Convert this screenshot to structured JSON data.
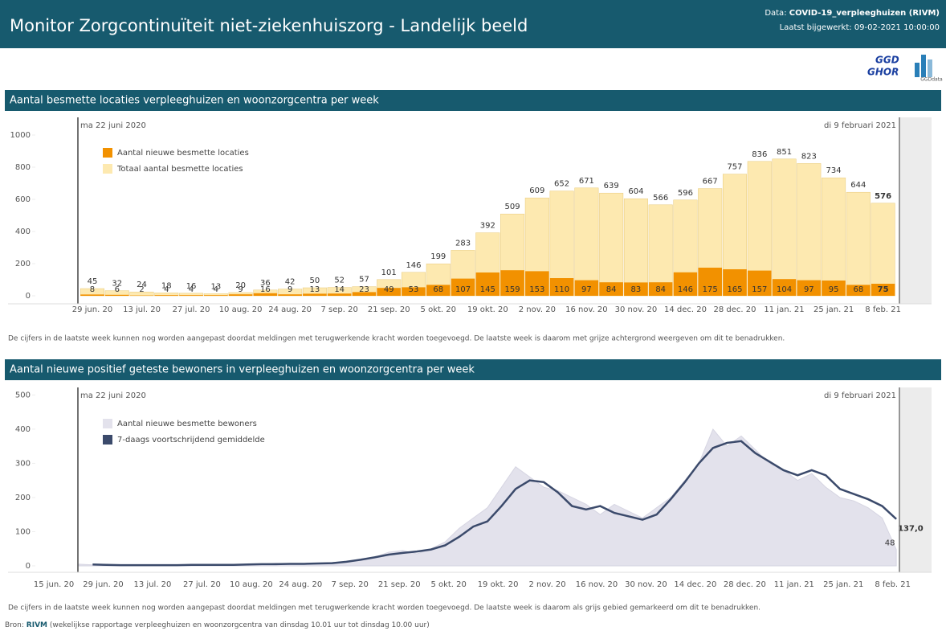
{
  "header": {
    "title": "Monitor Zorgcontinuïteit niet-ziekenhuiszorg - Landelijk beeld",
    "data_prefix": "Data:",
    "data_source": "COVID-19_verpleeghuizen (RIVM)",
    "updated": "Laatst bijgewerkt: 09-02-2021 10:00:00",
    "logo1_top": "GGD",
    "logo1_bottom": "GHOR",
    "logo2": "GGDdata"
  },
  "sections": [
    {
      "title": "Aantal besmette locaties verpleeghuizen en woonzorgcentra per week",
      "note": "De cijfers in de laatste week kunnen nog worden aangepast doordat meldingen met terugwerkende kracht worden toegevoegd. De laatste week is daarom met grijze achtergrond weergeven om dit te benadrukken."
    },
    {
      "title": "Aantal nieuwe positief geteste bewoners in verpleeghuizen en woonzorgcentra per week",
      "note": "De cijfers in de laatste week kunnen nog worden aangepast doordat meldingen met terugwerkende kracht worden toegevoegd. De laatste week is daarom als grijs gebied gemarkeerd om dit te benadrukken."
    }
  ],
  "source": {
    "prefix": "Bron:",
    "name": "RIVM",
    "detail": "(wekelijkse rapportage verpleeghuizen en woonzorgcentra van dinsdag 10.01 uur tot dinsdag 10.00 uur)"
  },
  "chart_data": [
    {
      "type": "bar",
      "annotations": [
        "ma 22 juni 2020",
        "di 9 februari 2021"
      ],
      "categories": [
        "29 jun. 20",
        null,
        "13 jul. 20",
        null,
        "27 jul. 20",
        null,
        "10 aug. 20",
        null,
        "24 aug. 20",
        null,
        "7 sep. 20",
        null,
        "21 sep. 20",
        null,
        "5 okt. 20",
        null,
        "19 okt. 20",
        null,
        "2 nov. 20",
        null,
        "16 nov. 20",
        null,
        "30 nov. 20",
        null,
        "14 dec. 20",
        null,
        "28 dec. 20",
        null,
        "11 jan. 21",
        null,
        "25 jan. 21",
        null,
        "8 feb. 21"
      ],
      "series": [
        {
          "name": "Aantal nieuwe besmette locaties",
          "color": "#f29100",
          "values": [
            8,
            6,
            2,
            4,
            4,
            4,
            9,
            16,
            9,
            13,
            14,
            23,
            49,
            53,
            68,
            107,
            145,
            159,
            153,
            110,
            97,
            84,
            83,
            84,
            146,
            175,
            165,
            157,
            104,
            97,
            95,
            68,
            75
          ]
        },
        {
          "name": "Totaal aantal besmette locaties",
          "color": "#fde9b0",
          "values": [
            45,
            32,
            24,
            18,
            16,
            13,
            20,
            36,
            42,
            50,
            52,
            57,
            101,
            146,
            199,
            283,
            392,
            509,
            609,
            652,
            671,
            639,
            604,
            566,
            596,
            667,
            757,
            836,
            851,
            823,
            734,
            644,
            576
          ]
        }
      ],
      "ylim": [
        0,
        1100
      ],
      "yticks": [
        0,
        200,
        400,
        600,
        800,
        1000
      ],
      "grid": false
    },
    {
      "type": "area",
      "annotations": [
        "ma 22 juni 2020",
        "di 9 februari 2021"
      ],
      "x": [
        "2020-06-22",
        "2020-06-26",
        "2020-06-30",
        "2020-07-04",
        "2020-07-08",
        "2020-07-12",
        "2020-07-16",
        "2020-07-20",
        "2020-07-24",
        "2020-07-28",
        "2020-08-01",
        "2020-08-05",
        "2020-08-09",
        "2020-08-13",
        "2020-08-17",
        "2020-08-21",
        "2020-08-25",
        "2020-08-29",
        "2020-09-02",
        "2020-09-06",
        "2020-09-10",
        "2020-09-14",
        "2020-09-18",
        "2020-09-22",
        "2020-09-26",
        "2020-09-30",
        "2020-10-04",
        "2020-10-08",
        "2020-10-12",
        "2020-10-16",
        "2020-10-20",
        "2020-10-24",
        "2020-10-28",
        "2020-11-01",
        "2020-11-05",
        "2020-11-09",
        "2020-11-13",
        "2020-11-17",
        "2020-11-21",
        "2020-11-25",
        "2020-11-29",
        "2020-12-03",
        "2020-12-07",
        "2020-12-11",
        "2020-12-15",
        "2020-12-19",
        "2020-12-23",
        "2020-12-27",
        "2020-12-31",
        "2021-01-04",
        "2021-01-08",
        "2021-01-12",
        "2021-01-16",
        "2021-01-20",
        "2021-01-24",
        "2021-01-28",
        "2021-02-01",
        "2021-02-05",
        "2021-02-09"
      ],
      "series": [
        {
          "name": "Aantal nieuwe besmette bewoners",
          "kind": "area",
          "color": "#e3e2ec",
          "values": [
            5,
            3,
            2,
            1,
            2,
            1,
            2,
            2,
            3,
            2,
            3,
            3,
            4,
            5,
            8,
            6,
            5,
            8,
            10,
            12,
            20,
            25,
            40,
            45,
            35,
            50,
            70,
            110,
            140,
            170,
            230,
            290,
            260,
            230,
            220,
            200,
            180,
            150,
            180,
            160,
            140,
            170,
            200,
            250,
            300,
            400,
            350,
            380,
            340,
            300,
            280,
            250,
            270,
            230,
            200,
            190,
            170,
            140,
            48
          ],
          "value_labels": [
            null,
            null,
            null,
            null,
            null,
            null,
            null,
            null,
            null,
            null,
            null,
            null,
            null,
            null,
            null,
            null,
            null,
            null,
            null,
            null,
            null,
            null,
            null,
            null,
            null,
            null,
            null,
            null,
            null,
            null,
            null,
            null,
            null,
            null,
            null,
            null,
            null,
            null,
            null,
            null,
            null,
            null,
            null,
            null,
            null,
            null,
            null,
            null,
            null,
            null,
            null,
            null,
            null,
            null,
            null,
            null,
            null,
            null,
            "48"
          ]
        },
        {
          "name": "7-daags voortschrijdend gemiddelde",
          "kind": "line",
          "color": "#3b4a6b",
          "values": [
            null,
            4,
            3,
            2,
            2,
            2,
            2,
            2,
            3,
            3,
            3,
            3,
            4,
            5,
            5,
            6,
            6,
            7,
            8,
            12,
            18,
            25,
            33,
            38,
            42,
            48,
            60,
            85,
            115,
            130,
            175,
            225,
            250,
            245,
            215,
            175,
            165,
            175,
            155,
            145,
            135,
            150,
            195,
            245,
            300,
            345,
            360,
            365,
            330,
            305,
            280,
            265,
            280,
            265,
            225,
            210,
            195,
            175,
            137
          ],
          "value_labels": [
            null,
            null,
            null,
            null,
            null,
            null,
            null,
            null,
            null,
            null,
            null,
            null,
            null,
            null,
            null,
            null,
            null,
            null,
            null,
            null,
            null,
            null,
            null,
            null,
            null,
            null,
            null,
            null,
            null,
            null,
            null,
            null,
            null,
            null,
            null,
            null,
            null,
            null,
            null,
            null,
            null,
            null,
            null,
            null,
            null,
            null,
            null,
            null,
            null,
            null,
            null,
            null,
            null,
            null,
            null,
            null,
            null,
            null,
            "137,0"
          ]
        }
      ],
      "xlim": [
        "2020-06-02",
        "2021-02-19"
      ],
      "xticks": [
        {
          "value": "2020-06-15",
          "label": "15 jun. 20"
        },
        {
          "value": "2020-06-29",
          "label": "29 jun. 20"
        },
        {
          "value": "2020-07-13",
          "label": "13 jul. 20"
        },
        {
          "value": "2020-07-27",
          "label": "27 jul. 20"
        },
        {
          "value": "2020-08-10",
          "label": "10 aug. 20"
        },
        {
          "value": "2020-08-24",
          "label": "24 aug. 20"
        },
        {
          "value": "2020-09-07",
          "label": "7 sep. 20"
        },
        {
          "value": "2020-09-21",
          "label": "21 sep. 20"
        },
        {
          "value": "2020-10-05",
          "label": "5 okt. 20"
        },
        {
          "value": "2020-10-19",
          "label": "19 okt. 20"
        },
        {
          "value": "2020-11-02",
          "label": "2 nov. 20"
        },
        {
          "value": "2020-11-16",
          "label": "16 nov. 20"
        },
        {
          "value": "2020-11-30",
          "label": "30 nov. 20"
        },
        {
          "value": "2020-12-14",
          "label": "14 dec. 20"
        },
        {
          "value": "2020-12-28",
          "label": "28 dec. 20"
        },
        {
          "value": "2021-01-11",
          "label": "11 jan. 21"
        },
        {
          "value": "2021-01-25",
          "label": "25 jan. 21"
        },
        {
          "value": "2021-02-08",
          "label": "8 feb. 21"
        }
      ],
      "ylim": [
        0,
        515
      ],
      "yticks": [
        0,
        100,
        200,
        300,
        400,
        500
      ],
      "grid": false
    }
  ]
}
